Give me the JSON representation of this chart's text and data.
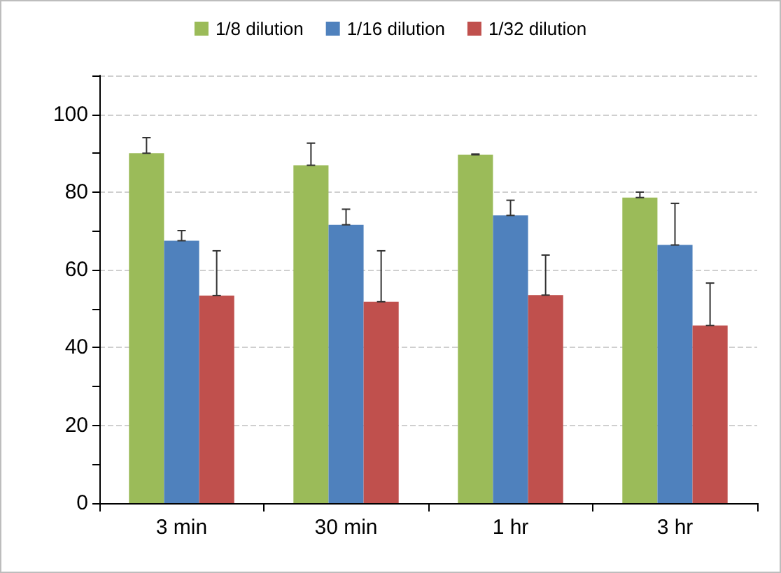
{
  "chart_data": {
    "type": "bar",
    "categories": [
      "3 min",
      "30 min",
      "1 hr",
      "3 hr"
    ],
    "series": [
      {
        "name": "1/8 dilution",
        "color": "#9bbb59",
        "values": [
          90,
          86.9,
          89.6,
          78.6
        ],
        "errors": [
          [
            90,
            94
          ],
          [
            86.9,
            92.6
          ],
          [
            89.6,
            89.8
          ],
          [
            78.6,
            80
          ]
        ]
      },
      {
        "name": "1/16 dilution",
        "color": "#4f81bd",
        "values": [
          67.5,
          71.6,
          74,
          66.4
        ],
        "errors": [
          [
            67.5,
            70.1
          ],
          [
            71.6,
            75.6
          ],
          [
            74,
            77.9
          ],
          [
            66.4,
            77.1
          ]
        ]
      },
      {
        "name": "1/32 dilution",
        "color": "#c0504d",
        "values": [
          53.4,
          51.8,
          53.5,
          45.7
        ],
        "errors": [
          [
            53.4,
            64.9
          ],
          [
            51.8,
            64.9
          ],
          [
            53.5,
            63.8
          ],
          [
            45.7,
            56.6
          ]
        ]
      }
    ],
    "ylim": [
      0,
      110
    ],
    "yticks": [
      0,
      {
        "value": 10,
        "label": null
      },
      20,
      {
        "value": 30,
        "label": null
      },
      40,
      {
        "value": 50,
        "label": null
      },
      60,
      {
        "value": 70,
        "label": null
      },
      80,
      {
        "value": 90,
        "label": null
      },
      100,
      {
        "value": 110,
        "label": null
      }
    ],
    "grid": "y",
    "legend": "top"
  }
}
